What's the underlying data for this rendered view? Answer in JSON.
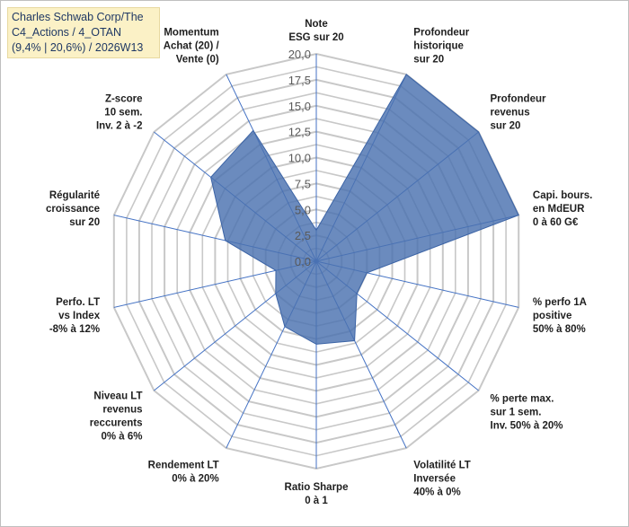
{
  "chart_data": {
    "type": "radar",
    "title_lines": [
      "Charles Schwab Corp/The",
      "C4_Actions / 4_OTAN",
      "(9,4% | 20,6%) / 2026W13"
    ],
    "axes": [
      {
        "label": "Note\nESG sur 20",
        "value": 3.0
      },
      {
        "label": "Profondeur\nhistorique\nsur 20",
        "value": 20.0
      },
      {
        "label": "Profondeur\nrevenus\nsur 20",
        "value": 20.0
      },
      {
        "label": "Capi. bours.\nen MdEUR\n0 à 60 G€",
        "value": 20.0
      },
      {
        "label": "% perfo 1A\npositive\n50% à 80%",
        "value": 5.0
      },
      {
        "label": "% perte max.\nsur 1 sem.\nInv. 50% à 20%",
        "value": 5.0
      },
      {
        "label": "Volatilité LT\nInversée\n40% à 0%",
        "value": 8.5
      },
      {
        "label": "Ratio Sharpe\n0 à 1",
        "value": 8.0
      },
      {
        "label": "Rendement LT\n0% à 20%",
        "value": 7.0
      },
      {
        "label": "Niveau LT\nrevenus\nreccurents\n0% à 6%",
        "value": 5.0
      },
      {
        "label": "Perfo. LT\nvs Index\n-8% à 12%",
        "value": 4.0
      },
      {
        "label": "Régularité\ncroissance\nsur 20",
        "value": 9.0
      },
      {
        "label": "Z-score\n10 sem.\nInv. 2 à -2",
        "value": 13.0
      },
      {
        "label": "Momentum\nAchat (20) /\nVente (0)",
        "value": 14.0
      }
    ],
    "r_ticks": [
      "0,0",
      "2,5",
      "5,0",
      "7,5",
      "10,0",
      "12,5",
      "15,0",
      "17,5",
      "20,0"
    ],
    "r_min": 0,
    "r_max": 20,
    "fill_color": "#4a72b0",
    "grid_color": "#c8c8c8",
    "spoke_color": "#4472c4"
  }
}
